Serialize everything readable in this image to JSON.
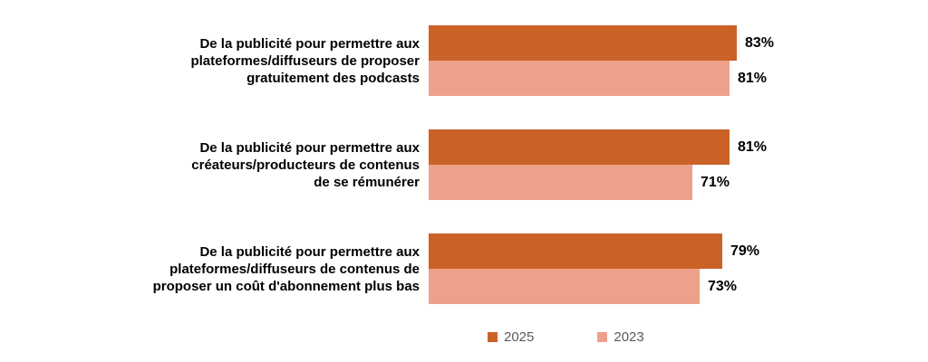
{
  "colors": {
    "background": "#FFFFFF",
    "category_text": "#000000",
    "value_text": "#000000",
    "legend_text": "#595959",
    "series_2025": "#CA6228",
    "series_2023": "#EDA18B"
  },
  "chart_data": {
    "type": "bar",
    "orientation": "horizontal",
    "title": "",
    "categories": [
      "De la publicité pour permettre aux plateformes/diffuseurs de proposer gratuitement des podcasts",
      "De la publicité pour permettre aux créateurs/producteurs de contenus de se rémunérer",
      "De la publicité pour permettre aux plateformes/diffuseurs de contenus de proposer un coût d'abonnement plus bas"
    ],
    "category_lines": [
      [
        "De la publicité pour permettre aux",
        "plateformes/diffuseurs de proposer",
        "gratuitement des podcasts"
      ],
      [
        "De la publicité pour permettre aux",
        "créateurs/producteurs de contenus",
        "de se rémunérer"
      ],
      [
        "De la publicité pour permettre aux",
        "plateformes/diffuseurs de contenus de",
        "proposer un coût d'abonnement plus bas"
      ]
    ],
    "series": [
      {
        "name": "2025",
        "color": "#CA6228",
        "values": [
          83,
          81,
          79
        ]
      },
      {
        "name": "2023",
        "color": "#EDA18B",
        "values": [
          81,
          71,
          73
        ]
      }
    ],
    "value_labels": [
      [
        "83%",
        "81%"
      ],
      [
        "81%",
        "71%"
      ],
      [
        "79%",
        "73%"
      ]
    ],
    "value_suffix": "%",
    "xlim": [
      0,
      100
    ],
    "grid": false,
    "legend_position": "bottom"
  },
  "legend": {
    "items": [
      {
        "label": "2025",
        "color": "#CA6228"
      },
      {
        "label": "2023",
        "color": "#EDA18B"
      }
    ]
  }
}
